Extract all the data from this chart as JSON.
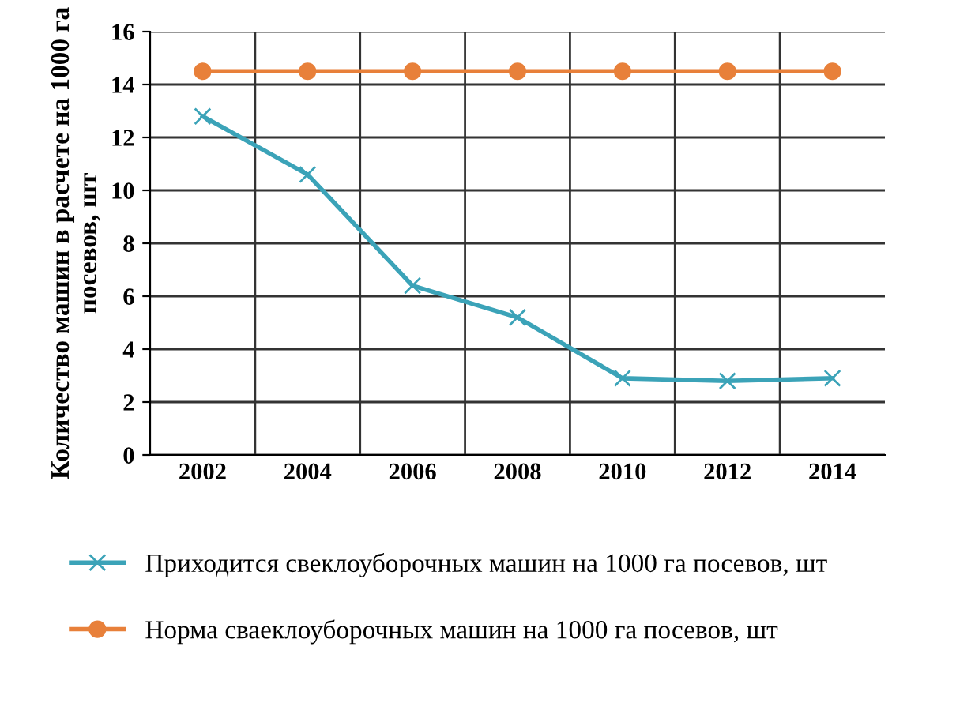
{
  "chart_data": {
    "type": "line",
    "ylabel": "Количество машин в расчете на 1000 га посевов, шт",
    "categories": [
      "2002",
      "2004",
      "2006",
      "2008",
      "2010",
      "2012",
      "2014"
    ],
    "series": [
      {
        "name": "Приходится свеклоуборочных машин на 1000 га посевов, шт",
        "color": "#3ba3b8",
        "marker": "cross",
        "values": [
          12.8,
          10.6,
          6.4,
          5.2,
          2.9,
          2.8,
          2.9
        ]
      },
      {
        "name": "Норма сваеклоуборочных машин на 1000 га посевов, шт",
        "color": "#e8803a",
        "marker": "circle",
        "values": [
          14.5,
          14.5,
          14.5,
          14.5,
          14.5,
          14.5,
          14.5
        ]
      }
    ],
    "ylim": [
      0,
      16
    ],
    "yticks": [
      0,
      2,
      4,
      6,
      8,
      10,
      12,
      14,
      16
    ],
    "grid": true,
    "legend": "bottom"
  }
}
